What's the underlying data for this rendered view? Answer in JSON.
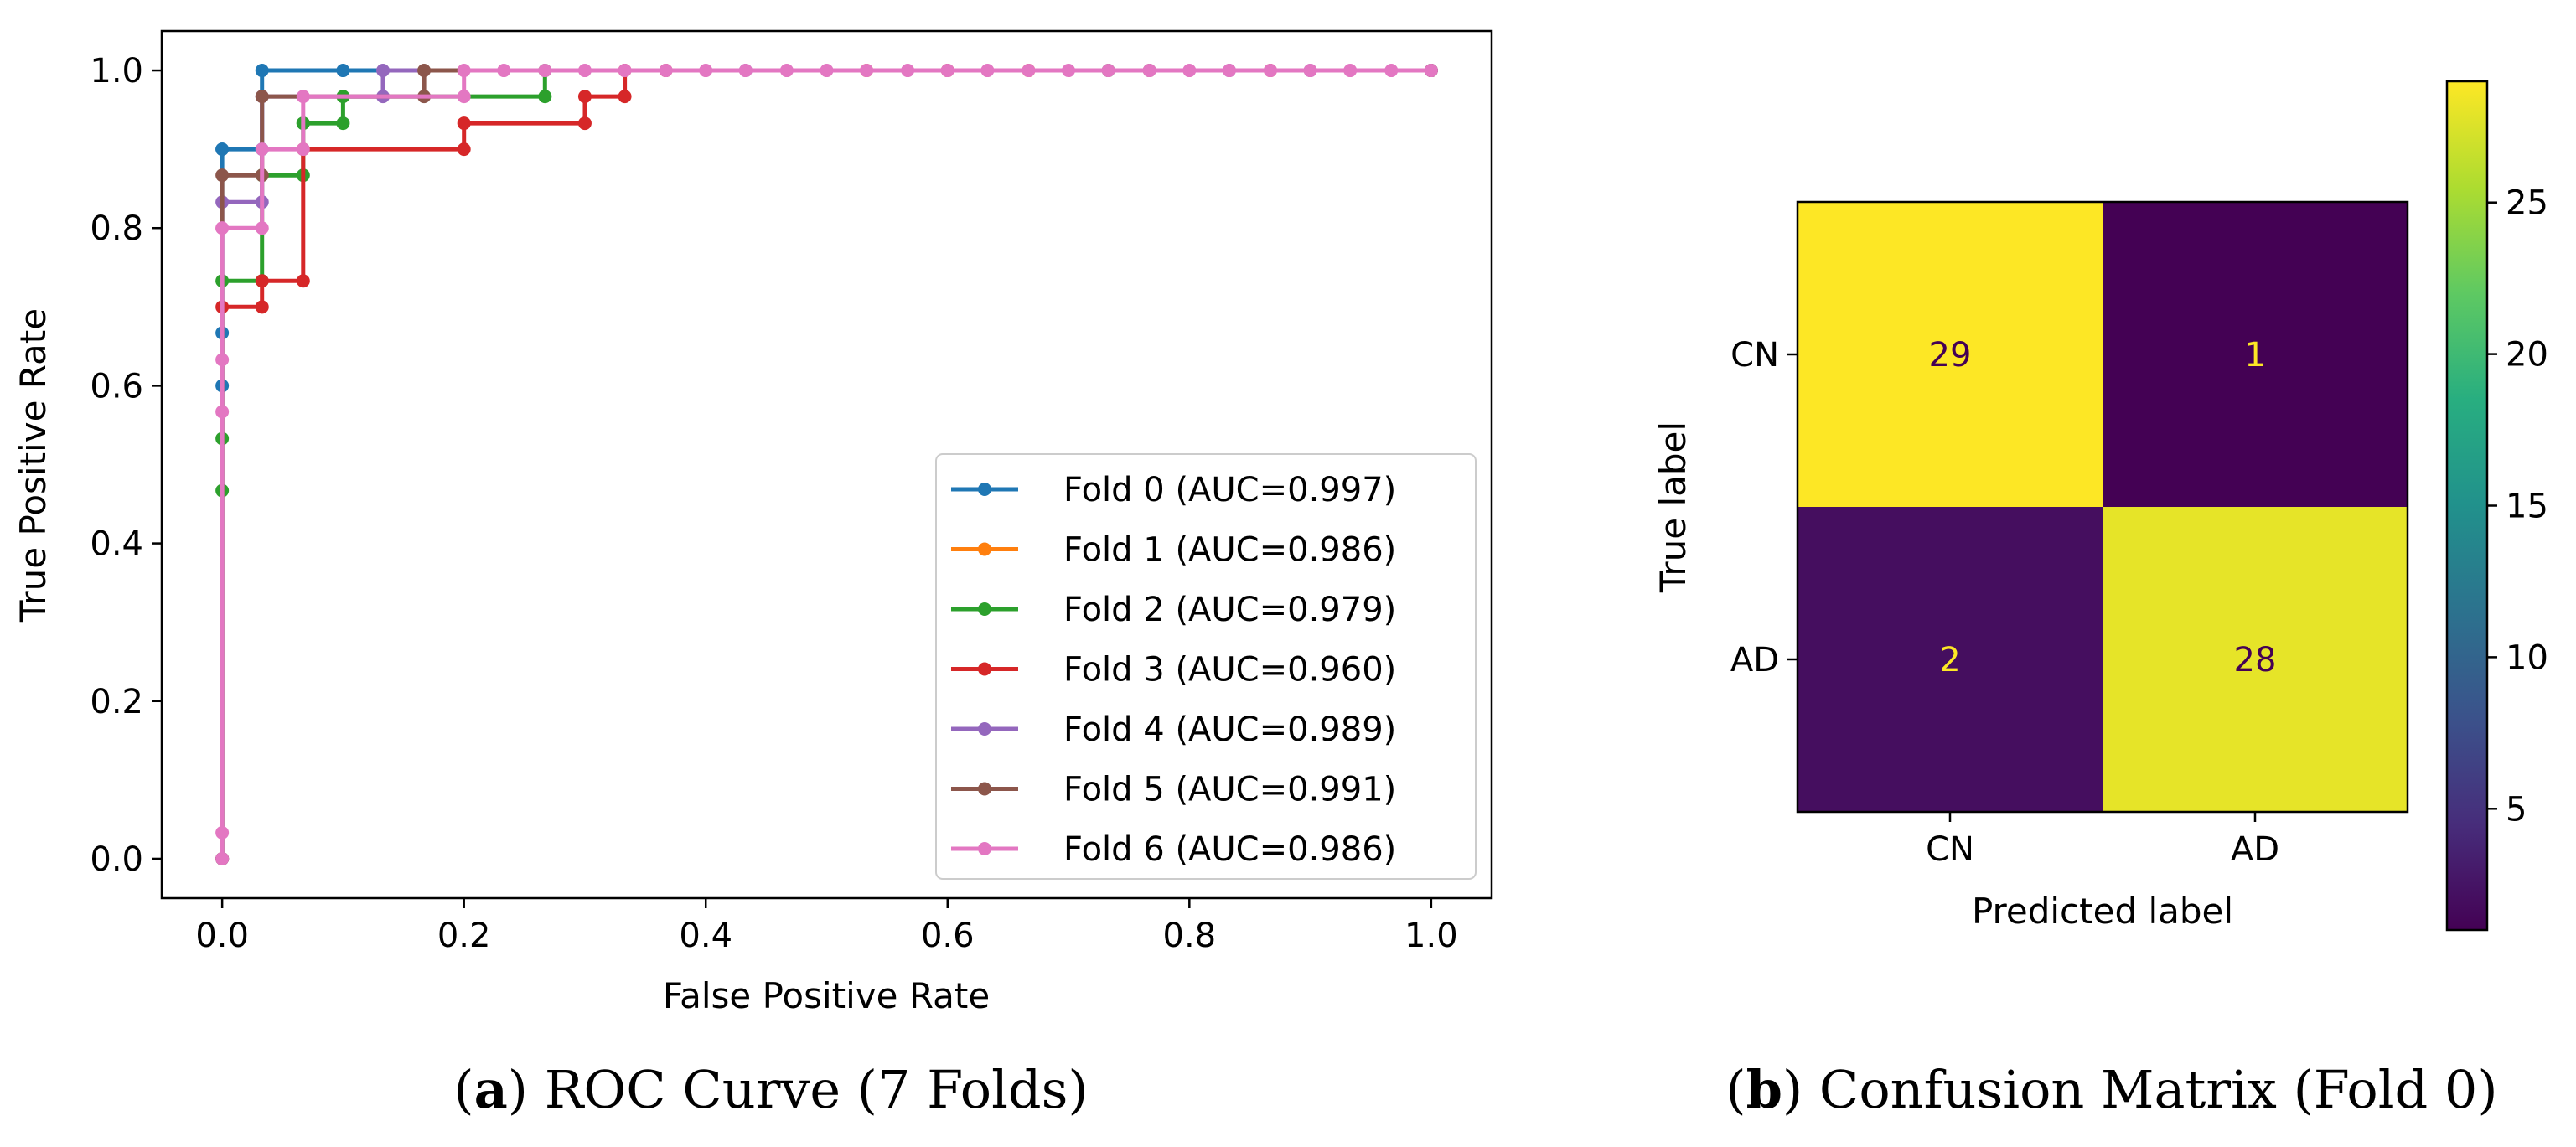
{
  "figure": {
    "caption_a": {
      "letter": "a",
      "text": "ROC Curve (7 Folds)"
    },
    "caption_b": {
      "letter": "b",
      "text": "Confusion Matrix (Fold 0)"
    }
  },
  "chart_data": [
    {
      "type": "line",
      "title": "",
      "xlabel": "False Positive Rate",
      "ylabel": "True Positive Rate",
      "xlim": [
        -0.05,
        1.05
      ],
      "ylim": [
        -0.05,
        1.05
      ],
      "xticks": [
        0.0,
        0.2,
        0.4,
        0.6,
        0.8,
        1.0
      ],
      "yticks": [
        0.0,
        0.2,
        0.4,
        0.6,
        0.8,
        1.0
      ],
      "tick_labels": [
        "0.0",
        "0.2",
        "0.4",
        "0.6",
        "0.8",
        "1.0"
      ],
      "legend_position": "lower-right",
      "grid": false,
      "series": [
        {
          "name": "Fold 0 (AUC=0.997)",
          "color": "#1f77b4",
          "x": [
            0,
            0,
            0,
            0,
            0,
            0.033,
            0.033,
            0.1,
            1.0
          ],
          "y": [
            0,
            0.6,
            0.667,
            0.9,
            0.9,
            0.9,
            1.0,
            1.0,
            1.0
          ]
        },
        {
          "name": "Fold 1 (AUC=0.986)",
          "color": "#ff7f0e",
          "x": [
            0.533,
            0.667
          ],
          "y": [
            1.0,
            1.0
          ]
        },
        {
          "name": "Fold 2 (AUC=0.979)",
          "color": "#2ca02c",
          "x": [
            0,
            0,
            0,
            0,
            0.033,
            0.033,
            0.067,
            0.067,
            0.067,
            0.1,
            0.1,
            0.267,
            0.267,
            0.733,
            1.0
          ],
          "y": [
            0,
            0.467,
            0.533,
            0.733,
            0.733,
            0.867,
            0.867,
            0.933,
            0.933,
            0.933,
            0.967,
            0.967,
            1.0,
            1.0,
            1.0
          ]
        },
        {
          "name": "Fold 3 (AUC=0.960)",
          "color": "#d62728",
          "x": [
            0,
            0,
            0.033,
            0.033,
            0.067,
            0.067,
            0.2,
            0.2,
            0.3,
            0.3,
            0.333,
            0.333,
            0.367,
            0.6,
            0.867,
            1.0
          ],
          "y": [
            0,
            0.7,
            0.7,
            0.733,
            0.733,
            0.9,
            0.9,
            0.933,
            0.933,
            0.967,
            0.967,
            1.0,
            1.0,
            1.0,
            1.0,
            1.0
          ]
        },
        {
          "name": "Fold 4 (AUC=0.989)",
          "color": "#9467bd",
          "x": [
            0,
            0,
            0.033,
            0.033,
            0.133,
            0.133,
            0.433,
            0.833,
            0.9,
            1.0
          ],
          "y": [
            0,
            0.833,
            0.833,
            0.967,
            0.967,
            1.0,
            1.0,
            1.0,
            1.0,
            1.0
          ]
        },
        {
          "name": "Fold 5 (AUC=0.991)",
          "color": "#8c564b",
          "x": [
            0,
            0,
            0.033,
            0.033,
            0.167,
            0.167,
            0.767,
            1.0
          ],
          "y": [
            0,
            0.867,
            0.867,
            0.967,
            0.967,
            1.0,
            1.0,
            1.0
          ]
        },
        {
          "name": "Fold 6 (AUC=0.986)",
          "color": "#e377c2",
          "x": [
            0,
            0,
            0,
            0,
            0,
            0,
            0.033,
            0.033,
            0.067,
            0.067,
            0.2,
            0.2,
            0.233,
            0.267,
            0.3,
            0.333,
            0.367,
            0.4,
            0.433,
            0.467,
            0.5,
            0.533,
            0.567,
            0.6,
            0.633,
            0.667,
            0.7,
            0.733,
            0.767,
            0.8,
            0.833,
            0.867,
            0.9,
            0.933,
            0.967,
            1.0
          ],
          "y": [
            0,
            0.033,
            0.567,
            0.633,
            0.8,
            0.8,
            0.8,
            0.9,
            0.9,
            0.967,
            0.967,
            1.0,
            1.0,
            1.0,
            1.0,
            1.0,
            1.0,
            1.0,
            1.0,
            1.0,
            1.0,
            1.0,
            1.0,
            1.0,
            1.0,
            1.0,
            1.0,
            1.0,
            1.0,
            1.0,
            1.0,
            1.0,
            1.0,
            1.0,
            1.0,
            1.0
          ]
        }
      ]
    },
    {
      "type": "heatmap",
      "title": "",
      "xlabel": "Predicted label",
      "ylabel": "True label",
      "row_labels": [
        "CN",
        "AD"
      ],
      "col_labels": [
        "CN",
        "AD"
      ],
      "values": [
        [
          29,
          1
        ],
        [
          2,
          28
        ]
      ],
      "colormap": "viridis",
      "colorbar": {
        "range": [
          1,
          29
        ],
        "ticks": [
          5,
          10,
          15,
          20,
          25
        ],
        "tick_labels": [
          "5",
          "10",
          "15",
          "20",
          "25"
        ]
      }
    }
  ]
}
